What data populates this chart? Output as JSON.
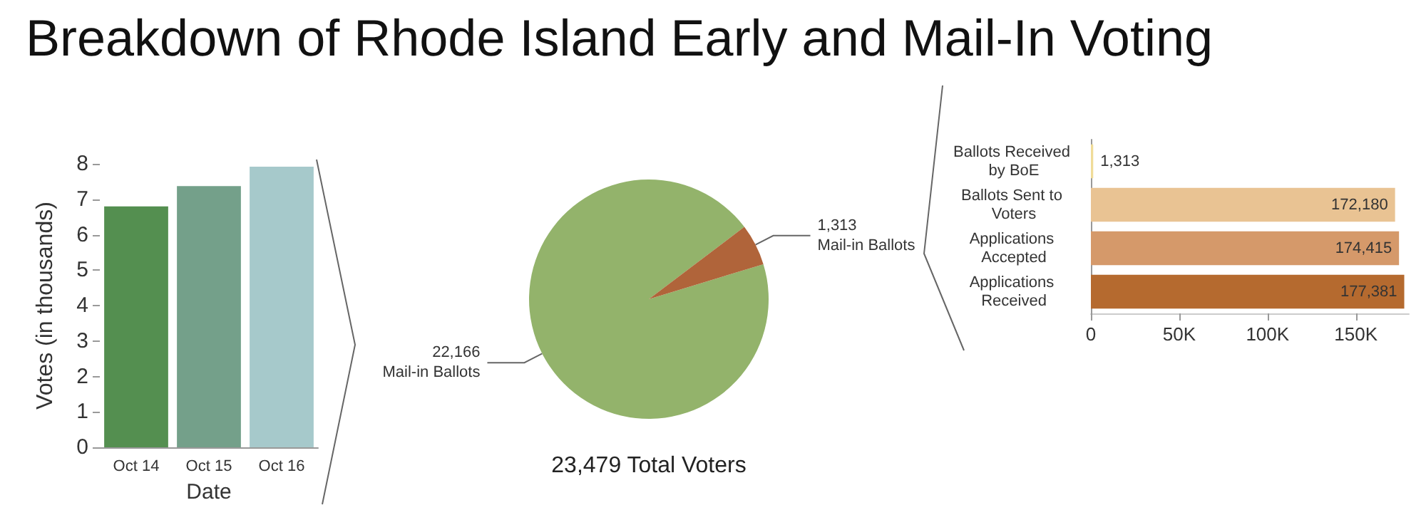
{
  "chart_data": [
    {
      "type": "bar",
      "title": "Breakdown of Rhode Island Early and Mail-In Voting",
      "xlabel": "Date",
      "ylabel": "Votes (in thousands)",
      "categories": [
        "Oct 14",
        "Oct 15",
        "Oct 16"
      ],
      "values": [
        6.8,
        7.37,
        7.92
      ],
      "colors": [
        "#548f50",
        "#74a08a",
        "#a6c9cb"
      ],
      "ylim": [
        0,
        8
      ],
      "yticks": [
        0,
        1,
        2,
        3,
        4,
        5,
        6,
        7,
        8
      ],
      "grid": false,
      "legend": false
    },
    {
      "type": "pie",
      "title": "23,479 Total Voters",
      "categories": [
        "Mail-in Ballots",
        "Mail-in Ballots"
      ],
      "values": [
        22166,
        1313
      ],
      "value_labels": [
        "22,166",
        "1,313"
      ],
      "colors": [
        "#93b36b",
        "#b0643a"
      ],
      "legend": false
    },
    {
      "type": "bar",
      "orientation": "horizontal",
      "categories": [
        "Ballots Received by BoE",
        "Ballots Sent to Voters",
        "Applications Accepted",
        "Applications Received"
      ],
      "values": [
        1313,
        172180,
        174415,
        177381
      ],
      "colors": [
        "#f0dc98",
        "#e9c393",
        "#d5996a",
        "#b56a2f"
      ],
      "xlim": [
        0,
        180000
      ],
      "xticks": [
        0,
        {
          "value": 50000,
          "label": "50K"
        },
        {
          "value": 100000,
          "label": "100K"
        },
        {
          "value": 150000,
          "label": "150K"
        }
      ],
      "value_labels": [
        "1,313",
        "172,180",
        "174,415",
        "177,381"
      ],
      "grid": false,
      "legend": false
    }
  ]
}
